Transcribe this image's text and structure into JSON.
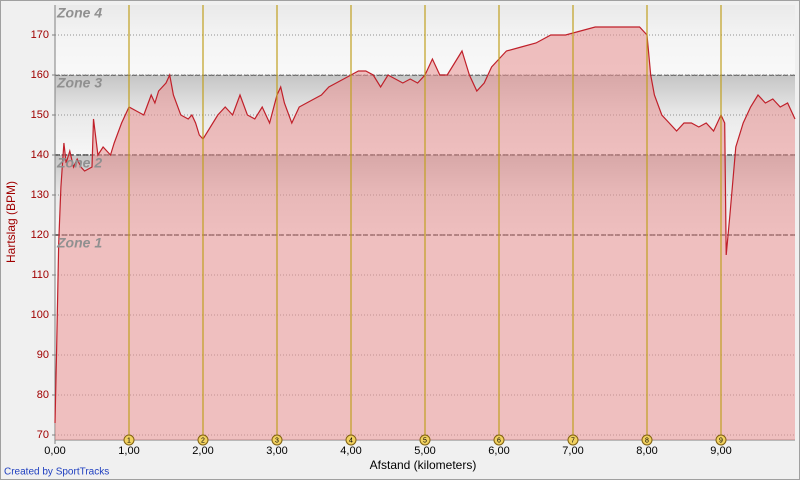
{
  "chart_data": {
    "type": "area",
    "x_label": "Afstand (kilometers)",
    "y_label": "Hartslag (BPM)",
    "x": [
      0,
      0.02,
      0.05,
      0.08,
      0.12,
      0.15,
      0.2,
      0.25,
      0.3,
      0.35,
      0.4,
      0.5,
      0.52,
      0.58,
      0.65,
      0.75,
      0.8,
      0.9,
      1.0,
      1.1,
      1.2,
      1.3,
      1.35,
      1.4,
      1.5,
      1.55,
      1.6,
      1.7,
      1.8,
      1.85,
      1.9,
      1.95,
      2.0,
      2.1,
      2.2,
      2.3,
      2.4,
      2.5,
      2.6,
      2.7,
      2.8,
      2.9,
      3.0,
      3.05,
      3.1,
      3.2,
      3.3,
      3.4,
      3.5,
      3.6,
      3.7,
      3.8,
      3.9,
      4.0,
      4.1,
      4.2,
      4.3,
      4.4,
      4.5,
      4.6,
      4.7,
      4.8,
      4.9,
      5.0,
      5.1,
      5.2,
      5.3,
      5.4,
      5.5,
      5.6,
      5.7,
      5.8,
      5.9,
      6.0,
      6.1,
      6.3,
      6.5,
      6.7,
      6.9,
      7.1,
      7.3,
      7.5,
      7.7,
      7.9,
      8.0,
      8.05,
      8.1,
      8.2,
      8.3,
      8.4,
      8.5,
      8.6,
      8.7,
      8.8,
      8.9,
      9.0,
      9.05,
      9.07,
      9.12,
      9.2,
      9.3,
      9.4,
      9.5,
      9.6,
      9.7,
      9.8,
      9.9,
      10.0
    ],
    "values": [
      73,
      90,
      118,
      132,
      143,
      138,
      141,
      137,
      139,
      137,
      136,
      137,
      149,
      140,
      142,
      140,
      143,
      148,
      152,
      151,
      150,
      155,
      153,
      156,
      158,
      160,
      155,
      150,
      149,
      150,
      148,
      145,
      144,
      147,
      150,
      152,
      150,
      155,
      150,
      149,
      152,
      148,
      155,
      157,
      153,
      148,
      152,
      153,
      154,
      155,
      157,
      158,
      159,
      160,
      161,
      161,
      160,
      157,
      160,
      159,
      158,
      159,
      158,
      160,
      164,
      160,
      160,
      163,
      166,
      160,
      156,
      158,
      162,
      164,
      166,
      167,
      168,
      170,
      170,
      171,
      172,
      172,
      172,
      172,
      170,
      160,
      155,
      150,
      148,
      146,
      148,
      148,
      147,
      148,
      146,
      150,
      148,
      115,
      125,
      142,
      148,
      152,
      155,
      153,
      154,
      152,
      153,
      149
    ],
    "color": "#c0202a",
    "xlim": [
      0,
      10
    ],
    "ylim": [
      68.75,
      177.5
    ],
    "xticks": [
      {
        "value": 0,
        "label": "0,00"
      },
      {
        "value": 1,
        "label": "1,00"
      },
      {
        "value": 2,
        "label": "2,00"
      },
      {
        "value": 3,
        "label": "3,00"
      },
      {
        "value": 4,
        "label": "4,00"
      },
      {
        "value": 5,
        "label": "5,00"
      },
      {
        "value": 6,
        "label": "6,00"
      },
      {
        "value": 7,
        "label": "7,00"
      },
      {
        "value": 8,
        "label": "8,00"
      },
      {
        "value": 9,
        "label": "9,00"
      }
    ],
    "yticks": [
      70,
      80,
      90,
      100,
      110,
      120,
      130,
      140,
      150,
      160,
      170
    ],
    "markers": [
      {
        "value": 1,
        "label": "1"
      },
      {
        "value": 2,
        "label": "2"
      },
      {
        "value": 3,
        "label": "3"
      },
      {
        "value": 4,
        "label": "4"
      },
      {
        "value": 5,
        "label": "5"
      },
      {
        "value": 6,
        "label": "6"
      },
      {
        "value": 7,
        "label": "7"
      },
      {
        "value": 8,
        "label": "8"
      },
      {
        "value": 9,
        "label": "9"
      }
    ],
    "zones": [
      {
        "name": "Zone 1",
        "from": 120
      },
      {
        "name": "Zone 2",
        "from": 140
      },
      {
        "name": "Zone 3",
        "from": 160
      },
      {
        "name": "Zone 4",
        "from": 177.5
      }
    ],
    "grid": true
  },
  "footer": "Created by SportTracks"
}
